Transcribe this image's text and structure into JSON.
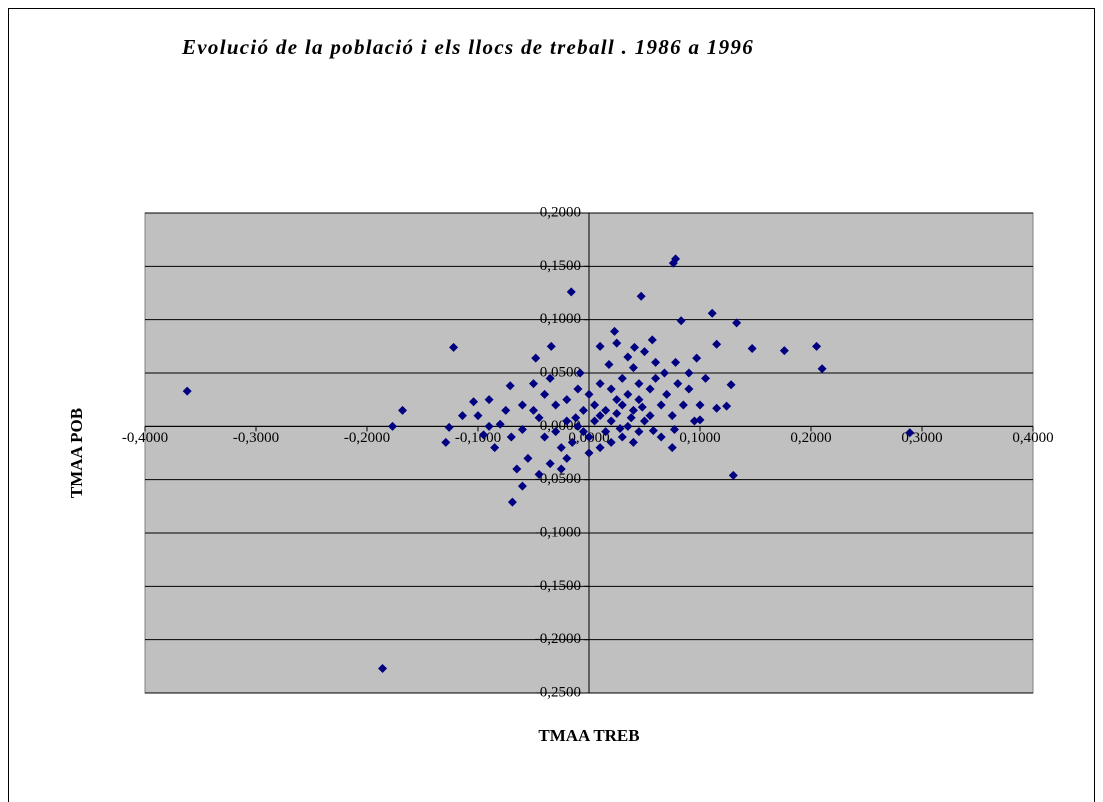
{
  "chart_data": {
    "type": "scatter",
    "title": "Evolució de la població i els llocs de treball . 1986 a 1996",
    "x_label": "TMAA TREB",
    "y_label": "TMAA POB",
    "color": "#000080",
    "plot_background": "#c0c0c0",
    "grid": true,
    "xlim": [
      -0.4,
      0.4
    ],
    "xticks": [
      {
        "value": -0.4,
        "label": "-0,4000"
      },
      {
        "value": -0.3,
        "label": "-0,3000"
      },
      {
        "value": -0.2,
        "label": "-0,2000"
      },
      {
        "value": -0.1,
        "label": "-0,1000"
      },
      {
        "value": 0,
        "label": "0,0000"
      },
      {
        "value": 0.1,
        "label": "0,1000"
      },
      {
        "value": 0.2,
        "label": "0,2000"
      },
      {
        "value": 0.3,
        "label": "0,3000"
      },
      {
        "value": 0.4,
        "label": "0,4000"
      }
    ],
    "ylim": [
      -0.25,
      0.2
    ],
    "yticks": [
      {
        "value": 0.2,
        "label": "0,2000"
      },
      {
        "value": 0.15,
        "label": "0,1500"
      },
      {
        "value": 0.1,
        "label": "0,1000"
      },
      {
        "value": 0.05,
        "label": "0,0500"
      },
      {
        "value": 0,
        "label": "0,0000"
      },
      {
        "value": -0.05,
        "label": "-0,0500"
      },
      {
        "value": -0.1,
        "label": "-0,1000"
      },
      {
        "value": -0.15,
        "label": "-0,1500"
      },
      {
        "value": -0.2,
        "label": "-0,2000"
      },
      {
        "value": -0.25,
        "label": "-0,2500"
      }
    ],
    "x": [
      -0.362,
      -0.186,
      -0.177,
      -0.168,
      -0.122,
      -0.016,
      0.047,
      0.078,
      0.076,
      0.083,
      0.111,
      0.133,
      0.147,
      0.176,
      0.205,
      0.21,
      0.289,
      0.13,
      -0.069,
      -0.06,
      0.115,
      0.128,
      0.124,
      0.115,
      0.097,
      -0.129,
      -0.126,
      -0.114,
      -0.104,
      -0.09,
      -0.071,
      -0.048,
      -0.034,
      0.01,
      0.023,
      0.041,
      0.057,
      0.1,
      0.077,
      0.01,
      0.02,
      -0.01,
      0.0,
      0.03,
      0.025,
      -0.02,
      -0.03,
      0.015,
      0.035,
      0.04,
      0.045,
      0.005,
      -0.005,
      -0.015,
      -0.025,
      -0.04,
      -0.045,
      -0.05,
      -0.06,
      -0.07,
      -0.08,
      -0.085,
      -0.055,
      -0.035,
      -0.02,
      0.0,
      0.02,
      0.03,
      0.05,
      0.055,
      0.06,
      0.065,
      0.07,
      0.075,
      0.08,
      0.085,
      0.09,
      0.095,
      0.06,
      0.05,
      0.04,
      0.03,
      0.02,
      0.01,
      0.0,
      -0.01,
      -0.02,
      -0.03,
      -0.04,
      -0.06,
      -0.075,
      -0.09,
      -0.095,
      -0.1,
      -0.065,
      -0.045,
      -0.025,
      0.01,
      0.04,
      0.065,
      0.075,
      0.055,
      0.045,
      0.035,
      0.025,
      0.015,
      0.005,
      -0.005,
      -0.012,
      0.028,
      0.038,
      0.048,
      0.058,
      0.068,
      0.078,
      0.035,
      0.018,
      -0.008,
      0.025,
      0.045,
      -0.035,
      -0.05,
      0.09,
      0.1,
      0.105
    ],
    "y": [
      0.033,
      -0.227,
      0.0,
      0.015,
      0.074,
      0.126,
      0.122,
      0.157,
      0.153,
      0.099,
      0.106,
      0.097,
      0.073,
      0.071,
      0.075,
      0.054,
      -0.006,
      -0.046,
      -0.071,
      -0.056,
      0.077,
      0.039,
      0.019,
      0.017,
      0.064,
      -0.015,
      -0.001,
      0.01,
      0.023,
      0.025,
      0.038,
      0.064,
      0.075,
      0.075,
      0.089,
      0.074,
      0.081,
      0.006,
      -0.003,
      0.01,
      0.005,
      0.0,
      -0.01,
      0.02,
      0.012,
      0.005,
      -0.005,
      -0.005,
      0.0,
      0.015,
      0.025,
      0.02,
      0.015,
      -0.015,
      -0.02,
      -0.01,
      0.008,
      0.015,
      -0.003,
      -0.01,
      0.002,
      -0.02,
      -0.03,
      -0.035,
      -0.03,
      -0.025,
      -0.015,
      -0.01,
      0.005,
      0.035,
      0.045,
      0.02,
      0.03,
      0.01,
      0.04,
      0.02,
      0.035,
      0.005,
      0.06,
      0.07,
      0.055,
      0.045,
      0.035,
      0.04,
      0.03,
      0.035,
      0.025,
      0.02,
      0.03,
      0.02,
      0.015,
      0.0,
      -0.008,
      0.01,
      -0.04,
      -0.045,
      -0.04,
      -0.02,
      -0.015,
      -0.01,
      -0.02,
      0.01,
      -0.005,
      0.03,
      0.025,
      0.015,
      0.005,
      -0.005,
      0.008,
      -0.002,
      0.008,
      0.018,
      -0.004,
      0.05,
      0.06,
      0.065,
      0.058,
      0.05,
      0.078,
      0.04,
      0.045,
      0.04,
      0.05,
      0.02,
      0.045
    ]
  }
}
